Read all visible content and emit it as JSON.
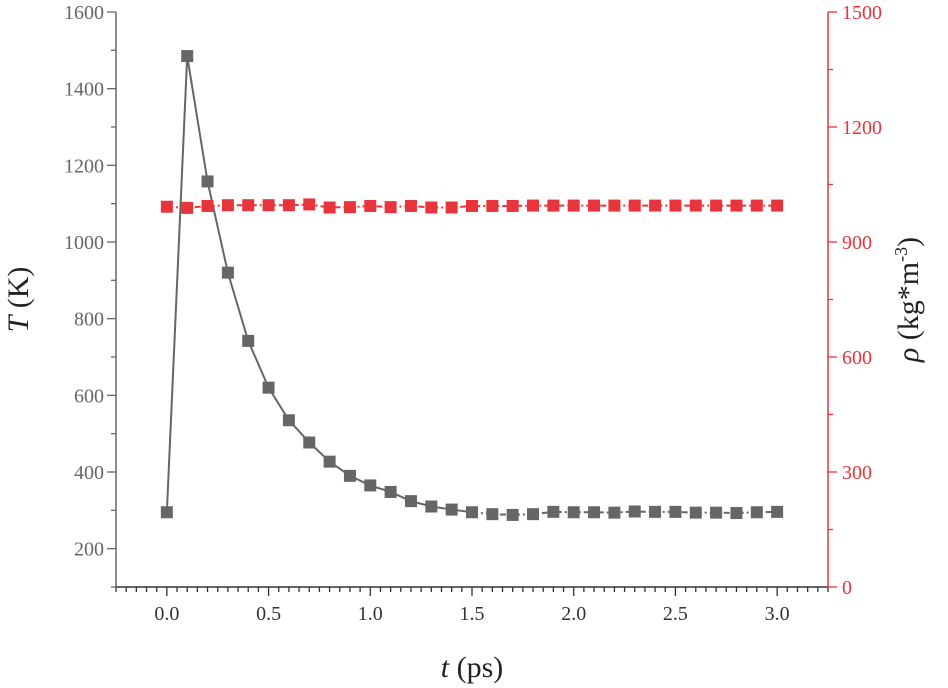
{
  "chart_data": {
    "type": "scatter",
    "x": [
      0.0,
      0.1,
      0.2,
      0.3,
      0.4,
      0.5,
      0.6,
      0.7,
      0.8,
      0.9,
      1.0,
      1.1,
      1.2,
      1.3,
      1.4,
      1.5,
      1.6,
      1.7,
      1.8,
      1.9,
      2.0,
      2.1,
      2.2,
      2.3,
      2.4,
      2.5,
      2.6,
      2.7,
      2.8,
      2.9,
      3.0
    ],
    "series": [
      {
        "axis": "left",
        "color": "#666666",
        "marker": "square",
        "line": "solid then dash-dot",
        "values": [
          295,
          1485,
          1158,
          920,
          742,
          620,
          535,
          477,
          427,
          390,
          365,
          348,
          324,
          310,
          302,
          295,
          290,
          288,
          290,
          296,
          295,
          295,
          294,
          297,
          296,
          296,
          294,
          294,
          293,
          295,
          296
        ]
      },
      {
        "axis": "right",
        "color": "#e8343b",
        "marker": "square",
        "line": "dash-dot",
        "values": [
          992,
          989,
          994,
          996,
          996,
          996,
          996,
          998,
          990,
          991,
          994,
          991,
          994,
          990,
          990,
          994,
          994,
          994,
          995,
          995,
          995,
          995,
          995,
          995,
          995,
          995,
          995,
          995,
          995,
          995,
          995
        ]
      }
    ],
    "xlabel": {
      "symbol": "t",
      "unit": " (ps)"
    },
    "ylabel_left": {
      "symbol": "T",
      "unit": " (K)"
    },
    "ylabel_right": {
      "symbol": "ρ",
      "unit": " (kg*m",
      "sup": "-3",
      "close": ")"
    },
    "xlim": [
      -0.25,
      3.25
    ],
    "ylim_left": [
      100,
      1600
    ],
    "ylim_right": [
      0,
      1500
    ],
    "xticks": [
      "0.0",
      "0.5",
      "1.0",
      "1.5",
      "2.0",
      "2.5",
      "3.0"
    ],
    "yticks_left": [
      "200",
      "400",
      "600",
      "800",
      "1000",
      "1200",
      "1400",
      "1600"
    ],
    "yticks_right": [
      "0",
      "300",
      "600",
      "900",
      "1200",
      "1500"
    ],
    "left_axis_color": "#666666",
    "right_axis_color": "#e8343b",
    "grid": false,
    "legend": "none"
  }
}
